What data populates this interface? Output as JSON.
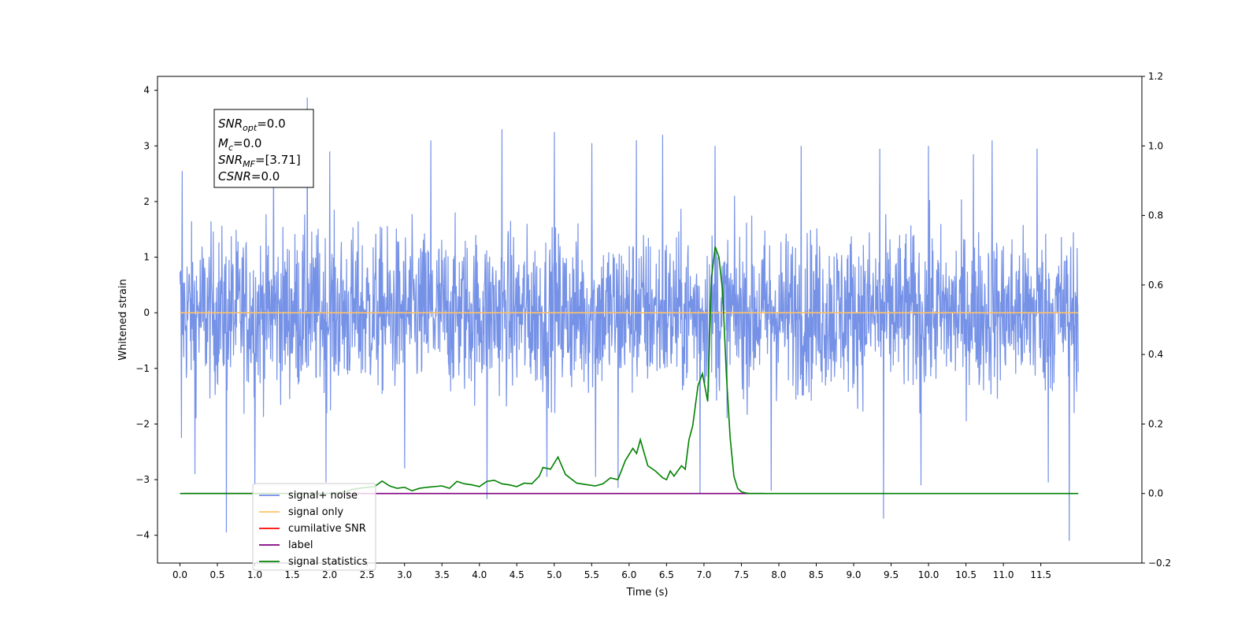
{
  "chart_data": {
    "type": "line",
    "xlabel": "Time (s)",
    "ylabel": "Whitened strain",
    "xlim": [
      -0.3,
      12.85
    ],
    "ylim_left": [
      -4.5,
      4.25
    ],
    "ylim_right": [
      -0.2,
      1.2
    ],
    "xticks": [
      "0.0",
      "0.5",
      "1.0",
      "1.5",
      "2.0",
      "2.5",
      "3.0",
      "3.5",
      "4.0",
      "4.5",
      "5.0",
      "5.5",
      "6.0",
      "6.5",
      "7.0",
      "7.5",
      "8.0",
      "8.5",
      "9.0",
      "9.5",
      "10.0",
      "10.5",
      "11.0",
      "11.5"
    ],
    "yticks_left": [
      "4",
      "3",
      "2",
      "1",
      "0",
      "−1",
      "−2",
      "−3",
      "−4"
    ],
    "yticks_right": [
      "1.2",
      "1.0",
      "0.8",
      "0.6",
      "0.4",
      "0.2",
      "0.0",
      "−0.2"
    ],
    "annotation": {
      "snr_opt": "=0.0",
      "mc": "=0.0",
      "snr_mf": "=[3.71]",
      "csnr": "=0.0"
    },
    "legend": {
      "placement": "lower-left",
      "items": [
        {
          "label": "signal+ noise",
          "color": "#6f8ce6"
        },
        {
          "label": "signal only",
          "color": "#ffc266"
        },
        {
          "label": "cumilative SNR",
          "color": "#ff0000"
        },
        {
          "label": "label",
          "color": "#800080"
        },
        {
          "label": "signal statistics",
          "color": "#008000"
        }
      ]
    },
    "series": [
      {
        "name": "signal+ noise",
        "axis": "left",
        "kind": "noise",
        "x_range": [
          0.0,
          12.0
        ],
        "band": [
          -1.5,
          1.5
        ],
        "typical_peak": 2.1,
        "spikes": [
          {
            "x": 0.03,
            "y": 2.55
          },
          {
            "x": 0.02,
            "y": -2.25
          },
          {
            "x": 0.2,
            "y": -2.9
          },
          {
            "x": 0.62,
            "y": -3.95
          },
          {
            "x": 1.0,
            "y": -3.1
          },
          {
            "x": 1.7,
            "y": 3.87
          },
          {
            "x": 1.25,
            "y": 2.9
          },
          {
            "x": 2.0,
            "y": 2.9
          },
          {
            "x": 1.95,
            "y": -3.05
          },
          {
            "x": 3.35,
            "y": 3.1
          },
          {
            "x": 3.0,
            "y": -2.8
          },
          {
            "x": 4.1,
            "y": -3.35
          },
          {
            "x": 4.3,
            "y": 3.3
          },
          {
            "x": 5.0,
            "y": 3.25
          },
          {
            "x": 4.9,
            "y": -2.95
          },
          {
            "x": 5.5,
            "y": 3.05
          },
          {
            "x": 5.55,
            "y": -2.95
          },
          {
            "x": 5.85,
            "y": -3.15
          },
          {
            "x": 6.1,
            "y": 3.1
          },
          {
            "x": 6.45,
            "y": 3.2
          },
          {
            "x": 6.95,
            "y": -3.25
          },
          {
            "x": 7.15,
            "y": 3.0
          },
          {
            "x": 7.9,
            "y": -3.2
          },
          {
            "x": 8.3,
            "y": 3.0
          },
          {
            "x": 9.4,
            "y": -3.7
          },
          {
            "x": 9.35,
            "y": 2.95
          },
          {
            "x": 10.0,
            "y": 3.0
          },
          {
            "x": 9.9,
            "y": -3.1
          },
          {
            "x": 10.6,
            "y": 2.85
          },
          {
            "x": 10.85,
            "y": 3.1
          },
          {
            "x": 11.45,
            "y": 2.95
          },
          {
            "x": 11.88,
            "y": -4.1
          },
          {
            "x": 11.6,
            "y": -3.05
          }
        ]
      },
      {
        "name": "signal only",
        "axis": "left",
        "x": [
          0.0,
          12.0
        ],
        "y": [
          0.0,
          0.0
        ]
      },
      {
        "name": "label",
        "axis": "right",
        "x": [
          0.05,
          7.8
        ],
        "y": [
          0.0,
          0.0
        ]
      },
      {
        "name": "signal statistics",
        "axis": "right",
        "x": [
          0.0,
          1.0,
          1.5,
          2.0,
          2.1,
          2.2,
          2.3,
          2.4,
          2.5,
          2.6,
          2.7,
          2.8,
          2.9,
          3.0,
          3.1,
          3.2,
          3.3,
          3.4,
          3.5,
          3.6,
          3.7,
          3.8,
          3.9,
          4.0,
          4.1,
          4.2,
          4.3,
          4.4,
          4.5,
          4.6,
          4.7,
          4.8,
          4.85,
          4.95,
          5.05,
          5.15,
          5.3,
          5.45,
          5.55,
          5.65,
          5.75,
          5.85,
          5.95,
          6.05,
          6.1,
          6.15,
          6.25,
          6.35,
          6.45,
          6.5,
          6.55,
          6.6,
          6.7,
          6.75,
          6.8,
          6.85,
          6.92,
          6.98,
          7.05,
          7.1,
          7.15,
          7.2,
          7.25,
          7.3,
          7.35,
          7.4,
          7.45,
          7.5,
          7.55,
          7.6,
          7.65,
          7.7,
          7.8,
          8.0,
          12.0
        ],
        "y": [
          0.0,
          0.0,
          0.0,
          0.0,
          0.002,
          0.004,
          0.012,
          0.015,
          0.018,
          0.02,
          0.036,
          0.022,
          0.015,
          0.018,
          0.008,
          0.015,
          0.018,
          0.02,
          0.022,
          0.015,
          0.035,
          0.028,
          0.025,
          0.02,
          0.035,
          0.038,
          0.028,
          0.025,
          0.02,
          0.03,
          0.028,
          0.05,
          0.075,
          0.07,
          0.105,
          0.055,
          0.03,
          0.025,
          0.022,
          0.028,
          0.045,
          0.04,
          0.095,
          0.13,
          0.115,
          0.155,
          0.08,
          0.065,
          0.045,
          0.04,
          0.065,
          0.05,
          0.08,
          0.07,
          0.155,
          0.195,
          0.31,
          0.345,
          0.265,
          0.62,
          0.71,
          0.68,
          0.58,
          0.34,
          0.16,
          0.05,
          0.015,
          0.005,
          0.002,
          0.0,
          0.0,
          0.0,
          0.0,
          0.0,
          0.0
        ]
      }
    ]
  }
}
